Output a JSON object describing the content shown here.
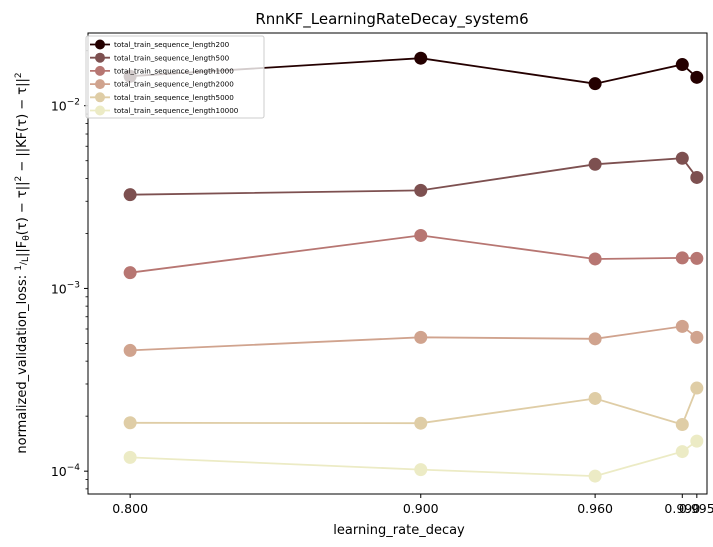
{
  "chart_data": {
    "type": "line",
    "title": "RnnKF_LearningRateDecay_system6",
    "xlabel": "learning_rate_decay",
    "ylabel": "normalized_validation_loss: 1/L||F_θ(τ) − τ||² − ||KF(τ) − τ||²",
    "ylabel_parts": {
      "prefix": "normalized_validation_loss: ",
      "frac_num": "1",
      "frac_den": "L",
      "expr": "||F",
      "sub": "θ",
      "expr2": "(τ) − τ||",
      "sup1": "2",
      "expr3": " − ||KF(τ) − τ||",
      "sup2": "2"
    },
    "y_scale": "log",
    "ylim": [
      7.5e-05,
      0.025
    ],
    "xlim": [
      0.7855,
      0.9985
    ],
    "x": [
      0.8,
      0.9,
      0.96,
      0.99,
      0.995
    ],
    "x_ticks": [
      0.8,
      0.9,
      0.96,
      0.99,
      0.995
    ],
    "x_tick_labels": [
      "0.800",
      "0.900",
      "0.960",
      "0.990",
      "0.995"
    ],
    "y_ticks": [
      0.0001,
      0.001,
      0.01
    ],
    "y_tick_labels": [
      {
        "base": "10",
        "exp": "−4"
      },
      {
        "base": "10",
        "exp": "−3"
      },
      {
        "base": "10",
        "exp": "−2"
      }
    ],
    "legend_position": "top-left",
    "grid": false,
    "series": [
      {
        "name": "total_train_sequence_length200",
        "color": "#240000",
        "values": [
          0.0145,
          0.0182,
          0.0132,
          0.0168,
          0.0143
        ]
      },
      {
        "name": "total_train_sequence_length500",
        "color": "#7d5050",
        "values": [
          0.00326,
          0.00344,
          0.00478,
          0.00516,
          0.00405
        ]
      },
      {
        "name": "total_train_sequence_length1000",
        "color": "#b77672",
        "values": [
          0.00122,
          0.00195,
          0.00145,
          0.00147,
          0.00146
        ]
      },
      {
        "name": "total_train_sequence_length2000",
        "color": "#d0a38e",
        "values": [
          0.000458,
          0.00054,
          0.00053,
          0.00062,
          0.00054
        ]
      },
      {
        "name": "total_train_sequence_length5000",
        "color": "#dfcda6",
        "values": [
          0.000184,
          0.000183,
          0.00025,
          0.00018,
          0.000285
        ]
      },
      {
        "name": "total_train_sequence_length10000",
        "color": "#ecebc5",
        "values": [
          0.000119,
          0.000102,
          9.4e-05,
          0.000128,
          0.000146
        ]
      }
    ]
  }
}
